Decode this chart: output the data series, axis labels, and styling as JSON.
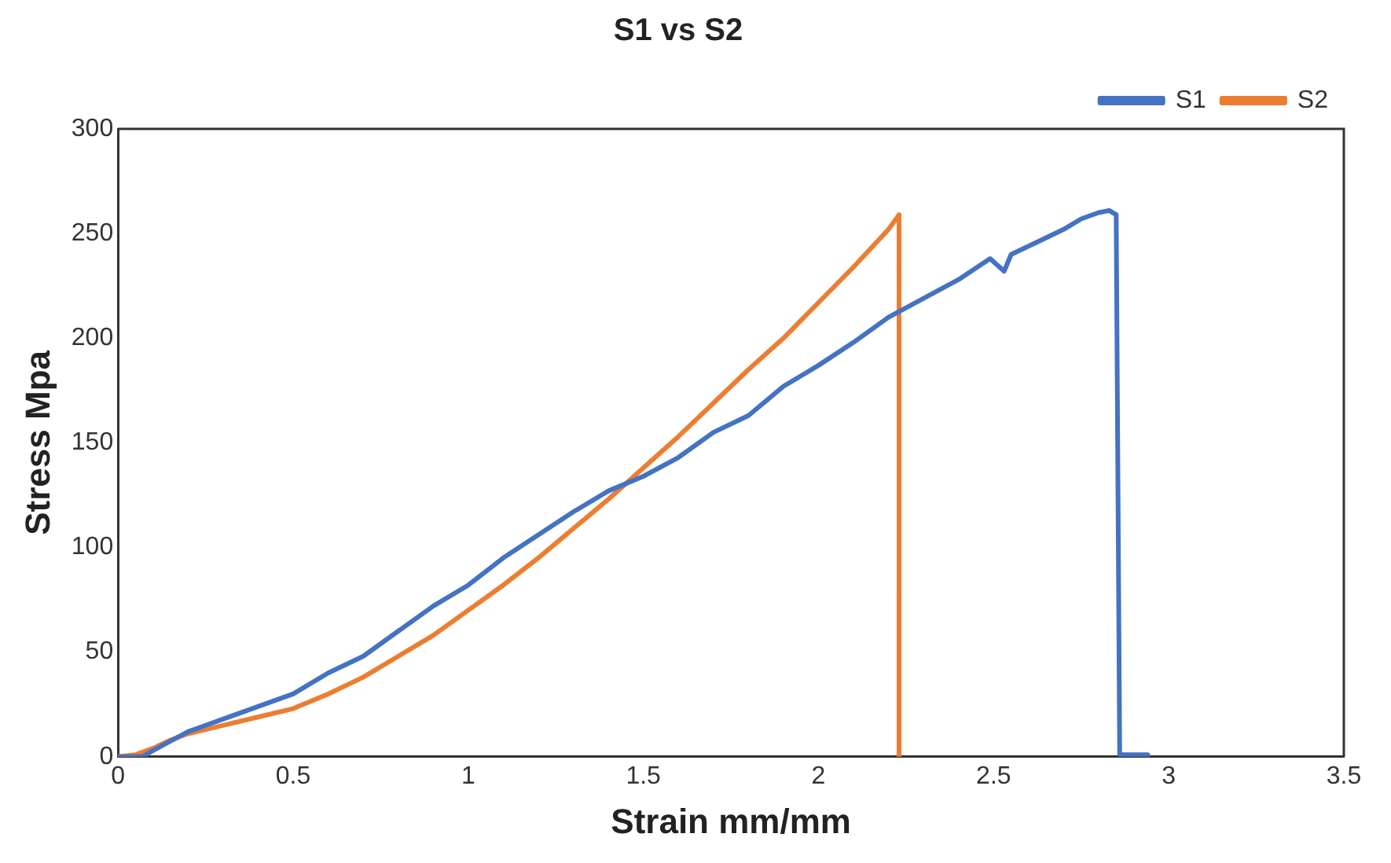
{
  "chart_data": {
    "type": "line",
    "title": "S1 vs S2",
    "xlabel": "Strain mm/mm",
    "ylabel": "Stress Mpa",
    "xlim": [
      0,
      3.5
    ],
    "xticks": [
      0,
      0.5,
      1,
      1.5,
      2,
      2.5,
      3,
      3.5
    ],
    "ylim": [
      0,
      300
    ],
    "yticks": [
      0,
      50,
      100,
      150,
      200,
      250,
      300
    ],
    "grid": false,
    "legend": "top right",
    "marker": "none",
    "line_style": "solid",
    "series": [
      {
        "name": "S1",
        "color": "#4472c4",
        "x": [
          0,
          0.07,
          0.1,
          0.2,
          0.3,
          0.4,
          0.5,
          0.6,
          0.7,
          0.8,
          0.9,
          1.0,
          1.1,
          1.2,
          1.3,
          1.4,
          1.5,
          1.6,
          1.7,
          1.8,
          1.9,
          2.0,
          2.1,
          2.2,
          2.3,
          2.4,
          2.49,
          2.53,
          2.55,
          2.65,
          2.7,
          2.75,
          2.8,
          2.83,
          2.85,
          2.86,
          2.94
        ],
        "values": [
          0,
          0,
          3,
          12,
          18,
          24,
          30,
          40,
          48,
          60,
          72,
          82,
          95,
          106,
          117,
          127,
          134,
          143,
          155,
          163,
          177,
          187,
          198,
          210,
          219,
          228,
          238,
          232,
          240,
          248,
          252,
          257,
          260,
          261,
          259,
          1,
          1
        ]
      },
      {
        "name": "S2",
        "color": "#ed7d31",
        "x": [
          0,
          0.05,
          0.1,
          0.15,
          0.2,
          0.3,
          0.4,
          0.5,
          0.6,
          0.7,
          0.8,
          0.9,
          1.0,
          1.1,
          1.2,
          1.3,
          1.4,
          1.5,
          1.6,
          1.7,
          1.8,
          1.9,
          2.0,
          2.1,
          2.2,
          2.23,
          2.23
        ],
        "values": [
          0,
          1,
          4,
          8,
          11,
          15,
          19,
          23,
          30,
          38,
          48,
          58,
          70,
          82,
          95,
          109,
          123,
          138,
          153,
          169,
          185,
          200,
          217,
          234,
          252,
          259,
          0
        ]
      }
    ]
  }
}
